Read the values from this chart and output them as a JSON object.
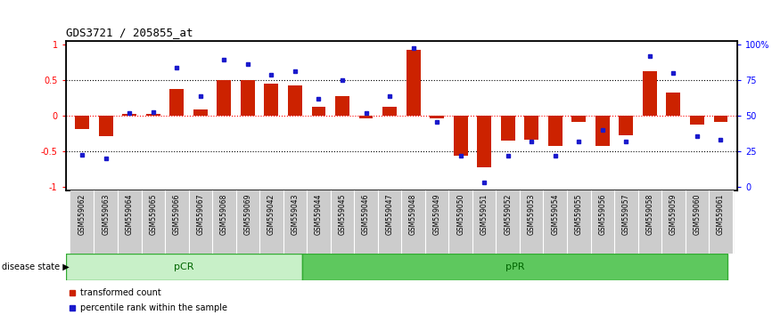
{
  "title": "GDS3721 / 205855_at",
  "samples": [
    "GSM559062",
    "GSM559063",
    "GSM559064",
    "GSM559065",
    "GSM559066",
    "GSM559067",
    "GSM559068",
    "GSM559069",
    "GSM559042",
    "GSM559043",
    "GSM559044",
    "GSM559045",
    "GSM559046",
    "GSM559047",
    "GSM559048",
    "GSM559049",
    "GSM559050",
    "GSM559051",
    "GSM559052",
    "GSM559053",
    "GSM559054",
    "GSM559055",
    "GSM559056",
    "GSM559057",
    "GSM559058",
    "GSM559059",
    "GSM559060",
    "GSM559061"
  ],
  "bar_values": [
    -0.18,
    -0.28,
    0.02,
    0.02,
    0.38,
    0.09,
    0.5,
    0.5,
    0.45,
    0.43,
    0.12,
    0.28,
    -0.04,
    0.12,
    0.93,
    -0.04,
    -0.56,
    -0.72,
    -0.35,
    -0.33,
    -0.42,
    -0.09,
    -0.42,
    -0.27,
    0.62,
    0.33,
    -0.12,
    -0.09
  ],
  "percentile_values": [
    -0.55,
    -0.6,
    0.04,
    0.05,
    0.68,
    0.28,
    0.79,
    0.72,
    0.57,
    0.62,
    0.24,
    0.5,
    0.04,
    0.28,
    0.95,
    -0.08,
    -0.56,
    -0.94,
    -0.56,
    -0.36,
    -0.56,
    -0.36,
    -0.2,
    -0.36,
    0.84,
    0.6,
    -0.28,
    -0.34
  ],
  "pCR_count": 10,
  "pPR_count": 18,
  "bar_color": "#cc2200",
  "dot_color": "#1a1acc",
  "pCR_color": "#c8f0c8",
  "pPR_color": "#5ec85e",
  "label_color": "#006600",
  "xlabel_bg_color": "#cccccc",
  "bg_color": "#ffffff"
}
